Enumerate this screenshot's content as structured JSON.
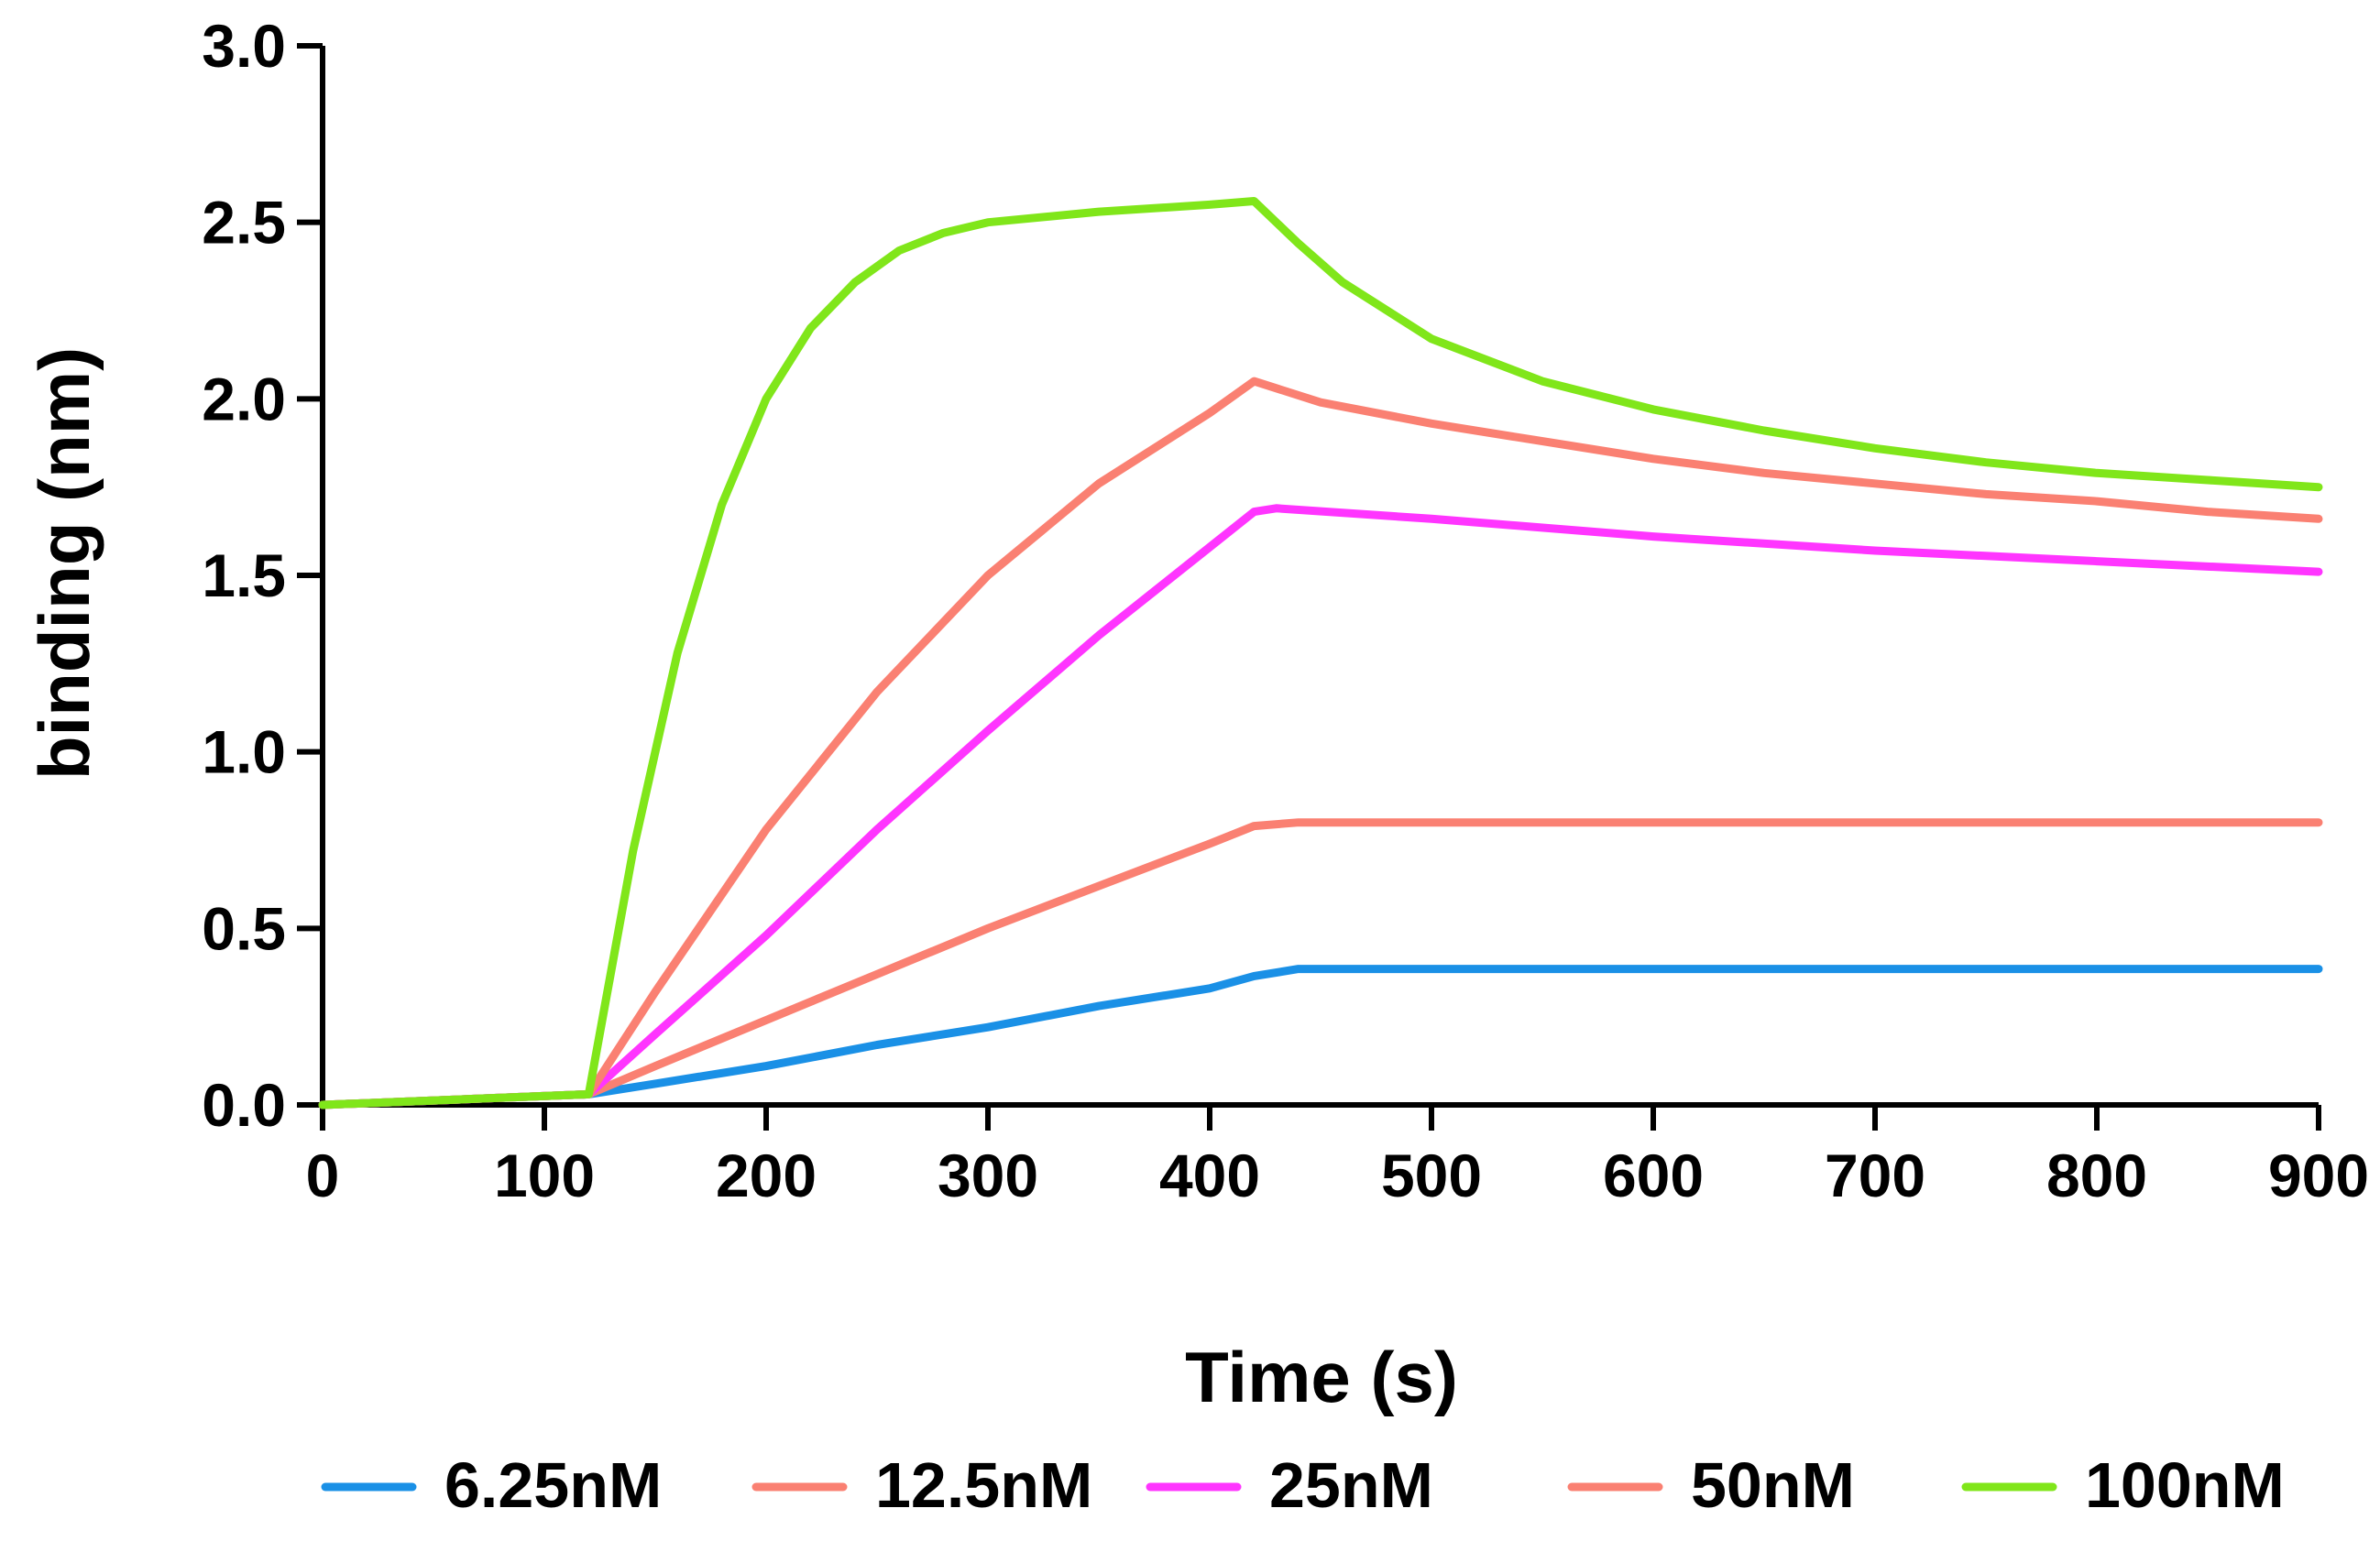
{
  "chart_data": {
    "type": "line",
    "title": "",
    "xlabel": "Time (s)",
    "ylabel": "binding (nm)",
    "xlim": [
      0,
      900
    ],
    "ylim": [
      0,
      3.0
    ],
    "xticks": [
      0,
      100,
      200,
      300,
      400,
      500,
      600,
      700,
      800,
      900
    ],
    "yticks": [
      0.0,
      0.5,
      1.0,
      1.5,
      2.0,
      2.5,
      3.0
    ],
    "xtick_labels": [
      "0",
      "100",
      "200",
      "300",
      "400",
      "500",
      "600",
      "700",
      "800",
      "900"
    ],
    "ytick_labels": [
      "0.0",
      "0.5",
      "1.0",
      "1.5",
      "2.0",
      "2.5",
      "3.0"
    ],
    "grid": false,
    "legend_position": "bottom",
    "series": [
      {
        "name": "6.25nM",
        "color": "#1a90e6",
        "x": [
          0,
          60,
          120,
          150,
          200,
          250,
          300,
          350,
          400,
          420,
          440,
          500,
          600,
          700,
          800,
          900
        ],
        "y": [
          0.0,
          0.015,
          0.03,
          0.06,
          0.11,
          0.17,
          0.22,
          0.28,
          0.33,
          0.365,
          0.385,
          0.385,
          0.385,
          0.385,
          0.385,
          0.385
        ]
      },
      {
        "name": "12.5nM",
        "color": "#fa8072",
        "x": [
          0,
          60,
          120,
          150,
          200,
          250,
          300,
          350,
          400,
          420,
          440,
          500,
          600,
          700,
          800,
          900
        ],
        "y": [
          0.0,
          0.015,
          0.03,
          0.11,
          0.24,
          0.37,
          0.5,
          0.62,
          0.74,
          0.79,
          0.8,
          0.8,
          0.8,
          0.8,
          0.8,
          0.8
        ]
      },
      {
        "name": "25nM",
        "color": "#ff35ff",
        "x": [
          0,
          60,
          120,
          150,
          200,
          250,
          300,
          350,
          400,
          420,
          430,
          500,
          600,
          700,
          800,
          900
        ],
        "y": [
          0.0,
          0.015,
          0.03,
          0.2,
          0.48,
          0.78,
          1.06,
          1.33,
          1.58,
          1.68,
          1.69,
          1.66,
          1.61,
          1.57,
          1.54,
          1.51
        ]
      },
      {
        "name": "50nM",
        "color": "#fa8072",
        "x": [
          0,
          60,
          120,
          150,
          200,
          250,
          300,
          350,
          400,
          420,
          450,
          500,
          550,
          600,
          650,
          700,
          750,
          800,
          850,
          900
        ],
        "y": [
          0.0,
          0.015,
          0.03,
          0.32,
          0.78,
          1.17,
          1.5,
          1.76,
          1.96,
          2.05,
          1.99,
          1.93,
          1.88,
          1.83,
          1.79,
          1.76,
          1.73,
          1.71,
          1.68,
          1.66
        ]
      },
      {
        "name": "100nM",
        "color": "#80e61a",
        "x": [
          0,
          60,
          120,
          140,
          160,
          180,
          200,
          220,
          240,
          260,
          280,
          300,
          350,
          400,
          420,
          440,
          460,
          500,
          550,
          600,
          650,
          700,
          750,
          800,
          850,
          900
        ],
        "y": [
          0.0,
          0.015,
          0.03,
          0.72,
          1.28,
          1.7,
          2.0,
          2.2,
          2.33,
          2.42,
          2.47,
          2.5,
          2.53,
          2.55,
          2.56,
          2.44,
          2.33,
          2.17,
          2.05,
          1.97,
          1.91,
          1.86,
          1.82,
          1.79,
          1.77,
          1.75
        ]
      }
    ]
  }
}
